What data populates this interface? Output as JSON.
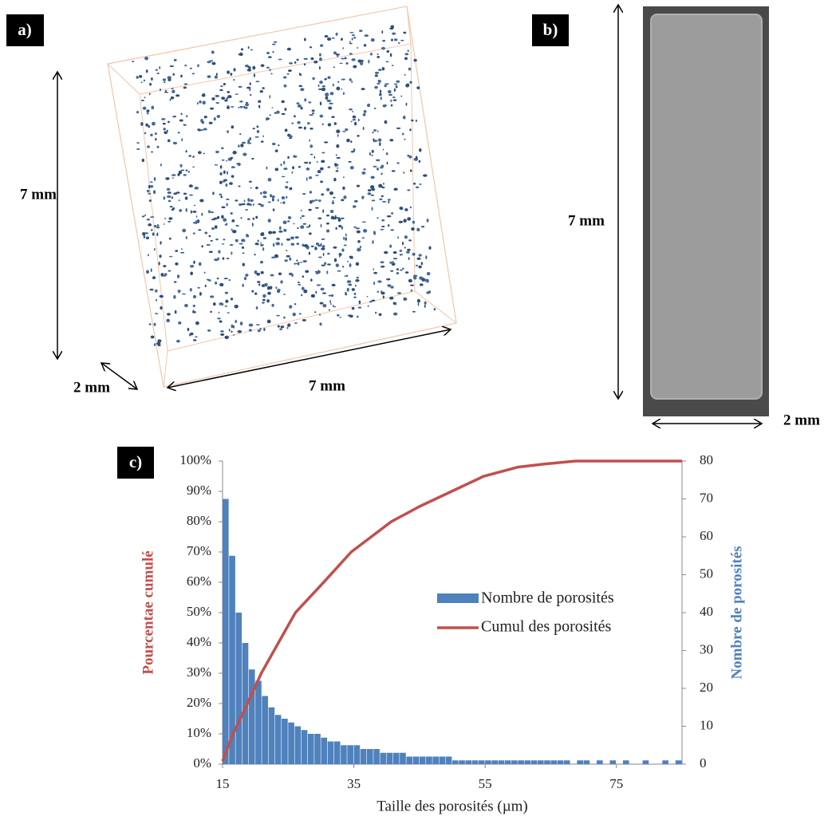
{
  "panel_a": {
    "label": "a)",
    "height": "7 mm",
    "depth": "2 mm",
    "width": "7 mm"
  },
  "panel_b": {
    "label": "b)",
    "height": "7 mm",
    "width": "2 mm"
  },
  "panel_c": {
    "label": "c)"
  },
  "chart_data": {
    "type": "histogram",
    "x_label": "Taille des porosités (µm)",
    "y_label": "Pourcentae cumulé",
    "y2_label": "Nombre de porosités",
    "xlim": [
      15,
      85
    ],
    "xticks": [
      15,
      35,
      55,
      75
    ],
    "ylim": [
      0,
      100
    ],
    "yticks": [
      {
        "value": 0,
        "label": "0%"
      },
      {
        "value": 10,
        "label": "10%"
      },
      {
        "value": 20,
        "label": "20%"
      },
      {
        "value": 30,
        "label": "30%"
      },
      {
        "value": 40,
        "label": "40%"
      },
      {
        "value": 50,
        "label": "50%"
      },
      {
        "value": 60,
        "label": "60%"
      },
      {
        "value": 70,
        "label": "70%"
      },
      {
        "value": 80,
        "label": "80%"
      },
      {
        "value": 90,
        "label": "90%"
      },
      {
        "value": 100,
        "label": "100%"
      }
    ],
    "y2lim": [
      0,
      80
    ],
    "y2ticks": [
      0,
      10,
      20,
      30,
      40,
      50,
      60,
      70,
      80
    ],
    "bins": [
      15,
      16,
      17,
      18,
      19,
      20,
      21,
      22,
      23,
      24,
      25,
      26,
      27,
      28,
      29,
      30,
      31,
      32,
      33,
      34,
      35,
      36,
      37,
      38,
      39,
      40,
      41,
      42,
      43,
      44,
      45,
      46,
      47,
      48,
      49,
      50,
      51,
      52,
      53,
      54,
      55,
      56,
      57,
      58,
      59,
      60,
      61,
      62,
      63,
      64,
      65,
      66,
      67,
      68,
      69,
      70,
      71,
      72,
      73,
      74,
      75,
      76,
      77,
      78,
      79,
      80,
      81,
      82,
      83,
      84,
      85
    ],
    "series": [
      {
        "name": "Nombre de porosités",
        "color": "#4f81bd",
        "axis": "y2",
        "values": [
          70,
          55,
          40,
          32,
          25,
          22,
          18,
          15,
          13,
          12,
          11,
          10,
          9,
          8,
          8,
          7,
          6,
          6,
          5,
          5,
          5,
          4,
          4,
          4,
          3,
          3,
          3,
          3,
          2,
          2,
          2,
          2,
          2,
          2,
          2,
          1,
          1,
          1,
          1,
          1,
          1,
          1,
          1,
          1,
          1,
          1,
          1,
          1,
          1,
          1,
          1,
          1,
          1,
          0,
          1,
          1,
          0,
          1,
          0,
          1,
          0,
          1,
          0,
          0,
          1,
          0,
          0,
          1,
          0,
          1
        ]
      },
      {
        "name": "Cumul des porosités",
        "color": "#c0504d",
        "axis": "y",
        "x": [
          15,
          16.6,
          18.8,
          20.9,
          23.5,
          26.1,
          30.4,
          34.6,
          40.7,
          45,
          49.9,
          54.8,
          60,
          64,
          68.8,
          75,
          85
        ],
        "values": [
          1,
          10,
          20,
          30,
          40,
          50,
          60,
          70,
          80,
          85,
          90,
          95,
          98,
          99,
          100,
          100,
          100
        ]
      }
    ]
  }
}
